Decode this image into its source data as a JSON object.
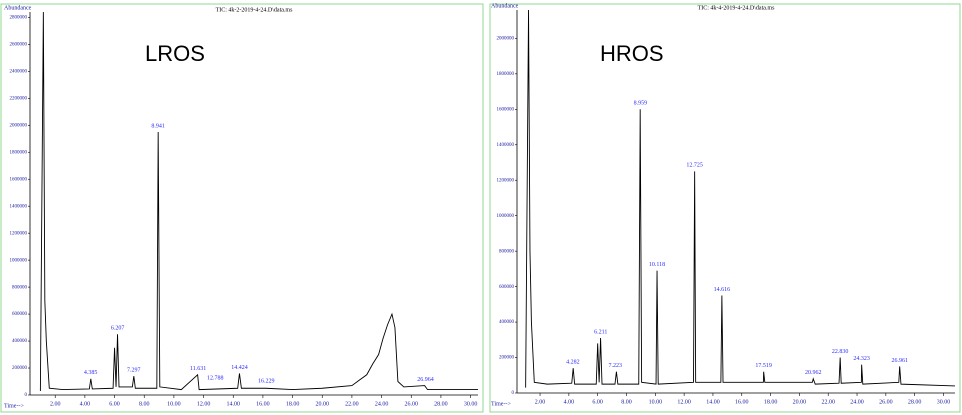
{
  "chart_data": [
    {
      "type": "line",
      "title": "LROS",
      "subtitle": "TIC: 4k-2-2019-4-24.D\\data.ms",
      "y_label": "Abundance",
      "x_label": "Time-->",
      "x": [
        1.0,
        1.2,
        1.3,
        1.4,
        1.6,
        2.5,
        4.3,
        4.4,
        4.5,
        5.9,
        6.0,
        6.1,
        6.2,
        6.3,
        7.2,
        7.3,
        7.4,
        8.85,
        8.94,
        9.05,
        10.5,
        11.6,
        11.7,
        14.3,
        14.42,
        14.55,
        16.2,
        18,
        20,
        22,
        22.5,
        23.0,
        23.4,
        23.8,
        24.1,
        24.4,
        24.7,
        24.9,
        25.1,
        25.5,
        26.9,
        27.1,
        30.5
      ],
      "series": [
        {
          "name": "TIC",
          "color": "#000000",
          "values": [
            30000,
            2840000,
            700000,
            400000,
            50000,
            40000,
            45000,
            120000,
            45000,
            50000,
            350000,
            60000,
            450000,
            60000,
            60000,
            140000,
            50000,
            50000,
            1950000,
            60000,
            40000,
            150000,
            40000,
            50000,
            160000,
            50000,
            50000,
            40000,
            50000,
            70000,
            110000,
            150000,
            230000,
            300000,
            420000,
            520000,
            600000,
            500000,
            100000,
            60000,
            70000,
            40000,
            40000
          ]
        }
      ],
      "label_color": "#2a2aff",
      "peak_labels": [
        {
          "value": 4.385,
          "y": 120000,
          "label": "4.385"
        },
        {
          "value": 6.207,
          "y": 450000,
          "label": "6.207"
        },
        {
          "value": 7.297,
          "y": 140000,
          "label": "7.297"
        },
        {
          "value": 8.941,
          "y": 1950000,
          "label": "8.941"
        },
        {
          "value": 11.631,
          "y": 150000,
          "label": "11.631"
        },
        {
          "value": 12.788,
          "y": 80000,
          "label": "12.788"
        },
        {
          "value": 14.424,
          "y": 160000,
          "label": "14.424"
        },
        {
          "value": 16.229,
          "y": 60000,
          "label": "16.229"
        },
        {
          "value": 26.964,
          "y": 70000,
          "label": "26.964"
        }
      ],
      "xlim": [
        0.3,
        30.5
      ],
      "ylim": [
        0,
        2840000
      ],
      "xticks": [
        {
          "value": 2,
          "label": "2.00"
        },
        {
          "value": 4,
          "label": "4.00"
        },
        {
          "value": 6,
          "label": "6.00"
        },
        {
          "value": 8,
          "label": "8.00"
        },
        {
          "value": 10,
          "label": "10.00"
        },
        {
          "value": 12,
          "label": "12.00"
        },
        {
          "value": 14,
          "label": "14.00"
        },
        {
          "value": 16,
          "label": "16.00"
        },
        {
          "value": 18,
          "label": "18.00"
        },
        {
          "value": 20,
          "label": "20.00"
        },
        {
          "value": 22,
          "label": "22.00"
        },
        {
          "value": 24,
          "label": "24.00"
        },
        {
          "value": 26,
          "label": "26.00"
        },
        {
          "value": 28,
          "label": "28.00"
        },
        {
          "value": 30,
          "label": "30.00"
        }
      ],
      "yticks": [
        0,
        200000,
        400000,
        600000,
        800000,
        1000000,
        1200000,
        1400000,
        1600000,
        1800000,
        2000000,
        2200000,
        2400000,
        2600000,
        2800000
      ]
    },
    {
      "type": "line",
      "title": "HROS",
      "subtitle": "TIC: 4k-4-2019-4-24.D\\data.ms",
      "y_label": "Abundance",
      "x_label": "Time-->",
      "x": [
        1.0,
        1.2,
        1.3,
        1.4,
        1.6,
        2.5,
        4.2,
        4.3,
        4.4,
        5.9,
        6.0,
        6.1,
        6.2,
        6.3,
        7.2,
        7.3,
        7.4,
        8.85,
        8.95,
        9.05,
        10.05,
        10.12,
        10.2,
        12.65,
        12.73,
        12.8,
        14.55,
        14.62,
        14.7,
        17.5,
        17.52,
        17.6,
        20.9,
        20.96,
        21.1,
        22.75,
        22.83,
        22.9,
        24.3,
        24.32,
        24.4,
        26.9,
        26.96,
        27.05,
        30.8
      ],
      "series": [
        {
          "name": "TIC",
          "color": "#000000",
          "values": [
            30000,
            2160000,
            800000,
            400000,
            60000,
            50000,
            55000,
            140000,
            50000,
            50000,
            280000,
            60000,
            310000,
            50000,
            50000,
            120000,
            50000,
            50000,
            1600000,
            60000,
            50000,
            690000,
            50000,
            60000,
            1250000,
            60000,
            60000,
            550000,
            60000,
            60000,
            120000,
            60000,
            60000,
            80000,
            50000,
            55000,
            200000,
            55000,
            60000,
            160000,
            50000,
            60000,
            150000,
            50000,
            40000
          ]
        }
      ],
      "label_color": "#2a2aff",
      "peak_labels": [
        {
          "value": 4.282,
          "y": 140000,
          "label": "4.282"
        },
        {
          "value": 6.211,
          "y": 310000,
          "label": "6.211"
        },
        {
          "value": 7.223,
          "y": 120000,
          "label": "7.223"
        },
        {
          "value": 8.959,
          "y": 1600000,
          "label": "8.959"
        },
        {
          "value": 10.118,
          "y": 690000,
          "label": "10.118"
        },
        {
          "value": 12.725,
          "y": 1250000,
          "label": "12.725"
        },
        {
          "value": 14.616,
          "y": 550000,
          "label": "14.616"
        },
        {
          "value": 17.519,
          "y": 120000,
          "label": "17.519"
        },
        {
          "value": 20.962,
          "y": 80000,
          "label": "20.962"
        },
        {
          "value": 22.83,
          "y": 200000,
          "label": "22.830"
        },
        {
          "value": 24.323,
          "y": 160000,
          "label": "24.323"
        },
        {
          "value": 26.961,
          "y": 150000,
          "label": "26.961"
        }
      ],
      "xlim": [
        0.4,
        30.8
      ],
      "ylim": [
        0,
        2160000
      ],
      "xticks": [
        {
          "value": 2,
          "label": "2.00"
        },
        {
          "value": 4,
          "label": "4.00"
        },
        {
          "value": 6,
          "label": "6.00"
        },
        {
          "value": 8,
          "label": "8.00"
        },
        {
          "value": 10,
          "label": "10.00"
        },
        {
          "value": 12,
          "label": "12.00"
        },
        {
          "value": 14,
          "label": "14.00"
        },
        {
          "value": 16,
          "label": "16.00"
        },
        {
          "value": 18,
          "label": "18.00"
        },
        {
          "value": 20,
          "label": "20.00"
        },
        {
          "value": 22,
          "label": "22.00"
        },
        {
          "value": 24,
          "label": "24.00"
        },
        {
          "value": 26,
          "label": "26.00"
        },
        {
          "value": 28,
          "label": "28.00"
        },
        {
          "value": 30,
          "label": "30.00"
        }
      ],
      "yticks": [
        0,
        200000,
        400000,
        600000,
        800000,
        1000000,
        1200000,
        1400000,
        1600000,
        1800000,
        2000000
      ]
    }
  ]
}
